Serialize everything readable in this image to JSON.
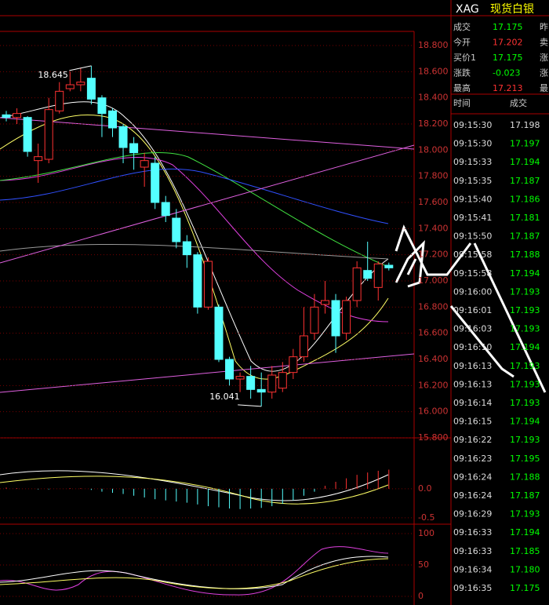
{
  "header": {
    "symbol": "XAG",
    "name": "现货白银"
  },
  "quote": [
    {
      "label": "成交",
      "value": "17.175",
      "extra": "昨"
    },
    {
      "label": "今开",
      "value": "17.202",
      "extra": "卖"
    },
    {
      "label": "买价1",
      "value": "17.175",
      "extra": "涨"
    },
    {
      "label": "涨跌",
      "value": "-0.023",
      "extra": "涨"
    },
    {
      "label": "最高",
      "value": "17.213",
      "extra": "最"
    }
  ],
  "trades": {
    "columns": [
      "时间",
      "成交"
    ],
    "rows": [
      [
        "09:15:30",
        "17.198"
      ],
      [
        "09:15:30",
        "17.197"
      ],
      [
        "09:15:33",
        "17.194"
      ],
      [
        "09:15:35",
        "17.187"
      ],
      [
        "09:15:40",
        "17.186"
      ],
      [
        "09:15:41",
        "17.181"
      ],
      [
        "09:15:50",
        "17.187"
      ],
      [
        "09:15:58",
        "17.188"
      ],
      [
        "09:15:58",
        "17.194"
      ],
      [
        "09:16:00",
        "17.193"
      ],
      [
        "09:16:01",
        "17.193"
      ],
      [
        "09:16:03",
        "17.193"
      ],
      [
        "09:16:10",
        "17.194"
      ],
      [
        "09:16:13",
        "17.193"
      ],
      [
        "09:16:13",
        "17.193"
      ],
      [
        "09:16:14",
        "17.193"
      ],
      [
        "09:16:15",
        "17.194"
      ],
      [
        "09:16:22",
        "17.193"
      ],
      [
        "09:16:23",
        "17.195"
      ],
      [
        "09:16:24",
        "17.188"
      ],
      [
        "09:16:24",
        "17.187"
      ],
      [
        "09:16:29",
        "17.193"
      ],
      [
        "09:16:33",
        "17.194"
      ],
      [
        "09:16:33",
        "17.185"
      ],
      [
        "09:16:34",
        "17.180"
      ],
      [
        "09:16:35",
        "17.175"
      ]
    ]
  },
  "price_chart": {
    "ylim": [
      15.8,
      18.8
    ],
    "yticks": [
      {
        "value": 18.8,
        "label": "18.800"
      },
      {
        "value": 18.6,
        "label": "18.600"
      },
      {
        "value": 18.4,
        "label": "18.400"
      },
      {
        "value": 18.2,
        "label": "18.200"
      },
      {
        "value": 18.0,
        "label": "18.000"
      },
      {
        "value": 17.8,
        "label": "17.800"
      },
      {
        "value": 17.6,
        "label": "17.600"
      },
      {
        "value": 17.4,
        "label": "17.400"
      },
      {
        "value": 17.2,
        "label": "17.200"
      },
      {
        "value": 17.0,
        "label": "17.000"
      },
      {
        "value": 16.8,
        "label": "16.800"
      },
      {
        "value": 16.6,
        "label": "16.600"
      },
      {
        "value": 16.4,
        "label": "16.400"
      },
      {
        "value": 16.2,
        "label": "16.200"
      },
      {
        "value": 16.0,
        "label": "16.000"
      },
      {
        "value": 15.8,
        "label": "15.800"
      }
    ],
    "open": [
      18.27,
      18.25,
      18.25,
      17.92,
      17.93,
      18.3,
      18.47,
      18.5,
      18.55,
      18.4,
      18.3,
      18.18,
      18.05,
      17.87,
      17.9,
      17.6,
      17.48,
      17.3,
      17.2,
      16.8,
      16.8,
      16.4,
      16.25,
      16.27,
      16.17,
      16.15,
      16.18,
      16.3,
      16.42,
      16.6,
      16.82,
      16.85,
      16.6,
      16.85,
      17.08,
      16.95,
      17.12
    ],
    "high": [
      18.3,
      18.32,
      18.26,
      18.05,
      18.4,
      18.52,
      18.6,
      18.63,
      18.645,
      18.42,
      18.32,
      18.2,
      18.1,
      17.98,
      17.95,
      17.65,
      17.55,
      17.35,
      17.22,
      17.18,
      16.82,
      16.42,
      16.3,
      16.35,
      16.3,
      16.35,
      16.38,
      16.48,
      16.8,
      16.9,
      17.0,
      16.9,
      16.88,
      17.15,
      17.3,
      17.15,
      17.14
    ],
    "low": [
      18.22,
      18.2,
      17.95,
      17.75,
      17.9,
      18.28,
      18.45,
      18.45,
      18.35,
      18.1,
      18.1,
      17.9,
      17.85,
      17.72,
      17.55,
      17.45,
      17.25,
      17.1,
      16.75,
      16.78,
      16.38,
      16.2,
      16.15,
      16.1,
      16.041,
      16.1,
      16.15,
      16.25,
      16.38,
      16.55,
      16.75,
      16.45,
      16.55,
      16.8,
      17.0,
      16.85,
      17.08
    ],
    "close": [
      18.25,
      18.28,
      17.99,
      17.95,
      18.31,
      18.45,
      18.5,
      18.52,
      18.39,
      18.28,
      18.17,
      18.02,
      17.98,
      17.92,
      17.6,
      17.5,
      17.3,
      17.2,
      16.8,
      17.15,
      16.4,
      16.25,
      16.27,
      16.17,
      16.15,
      16.28,
      16.3,
      16.42,
      16.58,
      16.8,
      16.85,
      16.58,
      16.85,
      17.1,
      17.02,
      17.13,
      17.1
    ],
    "high_label": "18.645",
    "low_label": "16.041"
  },
  "macd": {
    "ylim": [
      -0.61,
      0.85
    ],
    "yticks": [
      {
        "value": 0,
        "label": "0.0"
      },
      {
        "value": -0.5,
        "label": "-0.5"
      }
    ],
    "values": [
      0.02,
      0.01,
      0.0,
      -0.01,
      -0.01,
      0.0,
      0.01,
      0.01,
      -0.02,
      -0.05,
      -0.07,
      -0.09,
      -0.12,
      -0.15,
      -0.18,
      -0.2,
      -0.22,
      -0.24,
      -0.27,
      -0.3,
      -0.32,
      -0.34,
      -0.35,
      -0.34,
      -0.33,
      -0.3,
      -0.26,
      -0.2,
      -0.12,
      -0.05,
      0.05,
      0.12,
      0.18,
      0.24,
      0.28,
      0.31,
      0.33
    ]
  },
  "kdj": {
    "ylim": [
      -13.75,
      112.5
    ],
    "yticks": [
      100,
      50,
      0
    ]
  }
}
